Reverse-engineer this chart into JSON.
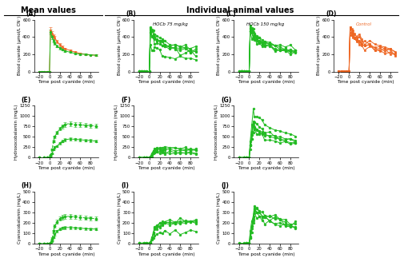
{
  "title_left": "Mean values",
  "title_right": "Individual animal values",
  "annotations": {
    "B": "HOCb 75 mg/kg",
    "C": "HOCb 150 mg/kg",
    "D": "Control"
  },
  "color_green": "#22BB22",
  "color_orange": "#EE6622",
  "xlabel": "Time post cyanide (min)",
  "ylabel_row1": "Blood cyanide (µmol/L CN⁻)",
  "ylabel_row2": "Hydroxocobalamin (mg/L)",
  "ylabel_row3": "Cyanocobalamin (mg/L)",
  "xlim": [
    -30,
    95
  ],
  "xticks": [
    -20,
    0,
    20,
    40,
    60,
    80
  ],
  "ylim_row1": [
    0,
    600
  ],
  "yticks_row1": [
    0,
    200,
    400,
    600
  ],
  "ylim_row2": [
    0,
    1250
  ],
  "yticks_row2": [
    0,
    250,
    500,
    750,
    1000,
    1250
  ],
  "ylim_row3": [
    0,
    500
  ],
  "yticks_row3": [
    0,
    100,
    200,
    300,
    400,
    500
  ]
}
